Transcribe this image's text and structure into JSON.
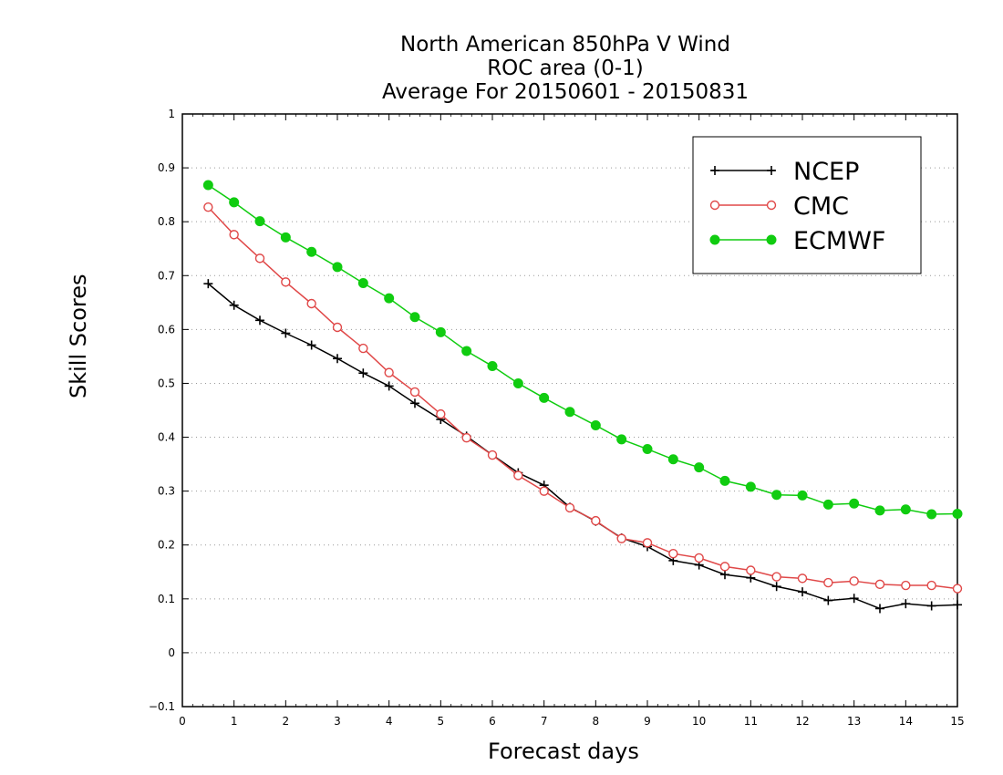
{
  "chart_data": {
    "type": "line",
    "title_lines": [
      "North American 850hPa V Wind",
      "ROC area (0-1)",
      "Average For 20150601 - 20150831"
    ],
    "xlabel": "Forecast days",
    "ylabel": "Skill Scores",
    "xlim": [
      0,
      15
    ],
    "ylim": [
      -0.1,
      1
    ],
    "x_ticks": [
      0,
      1,
      2,
      3,
      4,
      5,
      6,
      7,
      8,
      9,
      10,
      11,
      12,
      13,
      14,
      15
    ],
    "y_ticks": [
      -0.1,
      0,
      0.1,
      0.2,
      0.3,
      0.4,
      0.5,
      0.6,
      0.7,
      0.8,
      0.9,
      1
    ],
    "y_tick_labels": [
      "−0.1",
      "0",
      "0.1",
      "0.2",
      "0.3",
      "0.4",
      "0.5",
      "0.6",
      "0.7",
      "0.8",
      "0.9",
      "1"
    ],
    "grid": "horizontal dotted",
    "legend_position": "top-right",
    "x": [
      0.5,
      1,
      1.5,
      2,
      2.5,
      3,
      3.5,
      4,
      4.5,
      5,
      5.5,
      6,
      6.5,
      7,
      7.5,
      8,
      8.5,
      9,
      9.5,
      10,
      10.5,
      11,
      11.5,
      12,
      12.5,
      13,
      13.5,
      14,
      14.5,
      15
    ],
    "series": [
      {
        "name": "NCEP",
        "color": "#000000",
        "marker": "plus",
        "values": [
          0.685,
          0.645,
          0.617,
          0.593,
          0.571,
          0.546,
          0.519,
          0.495,
          0.463,
          0.433,
          0.402,
          0.367,
          0.334,
          0.311,
          0.27,
          0.244,
          0.213,
          0.197,
          0.171,
          0.163,
          0.145,
          0.139,
          0.123,
          0.113,
          0.097,
          0.101,
          0.082,
          0.091,
          0.087,
          0.089
        ]
      },
      {
        "name": "CMC",
        "color": "#e04848",
        "marker": "open-circle",
        "values": [
          0.827,
          0.776,
          0.732,
          0.688,
          0.648,
          0.604,
          0.565,
          0.52,
          0.484,
          0.443,
          0.399,
          0.367,
          0.329,
          0.3,
          0.269,
          0.245,
          0.212,
          0.204,
          0.184,
          0.176,
          0.16,
          0.153,
          0.141,
          0.138,
          0.13,
          0.133,
          0.127,
          0.125,
          0.125,
          0.119
        ]
      },
      {
        "name": "ECMWF",
        "color": "#10cc10",
        "marker": "filled-circle",
        "values": [
          0.868,
          0.836,
          0.801,
          0.771,
          0.744,
          0.716,
          0.686,
          0.658,
          0.623,
          0.595,
          0.56,
          0.532,
          0.5,
          0.473,
          0.447,
          0.422,
          0.396,
          0.378,
          0.359,
          0.344,
          0.319,
          0.308,
          0.293,
          0.292,
          0.275,
          0.277,
          0.264,
          0.266,
          0.257,
          0.258
        ]
      }
    ]
  }
}
